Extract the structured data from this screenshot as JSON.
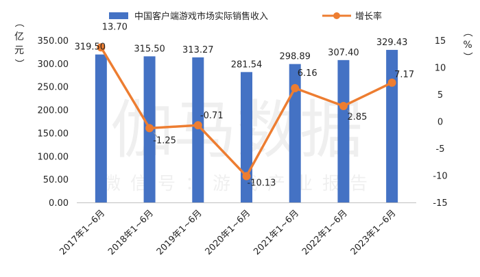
{
  "chart_data": {
    "type": "bar",
    "categories": [
      "2017年1~6月",
      "2018年1~6月",
      "2019年1~6月",
      "2020年1~6月",
      "2021年1~6月",
      "2022年1~6月",
      "2023年1~6月"
    ],
    "series": [
      {
        "name": "中国客户端游戏市场实际销售收入",
        "type": "bar",
        "axis": "left",
        "color": "#4472C4",
        "values": [
          319.5,
          315.5,
          313.27,
          281.54,
          298.89,
          307.4,
          329.43
        ],
        "labels": [
          "319.50",
          "315.50",
          "313.27",
          "281.54",
          "298.89",
          "307.40",
          "329.43"
        ]
      },
      {
        "name": "增长率",
        "type": "line",
        "axis": "right",
        "color": "#ED7D31",
        "values": [
          13.7,
          -1.25,
          -0.71,
          -10.13,
          6.16,
          2.85,
          7.17
        ],
        "labels": [
          "13.70",
          "-1.25",
          "-0.71",
          "-10.13",
          "6.16",
          "2.85",
          "7.17"
        ]
      }
    ],
    "y_left": {
      "label": "（亿元）",
      "range": [
        0,
        350
      ],
      "step": 50,
      "ticks": [
        "0.00",
        "50.00",
        "100.00",
        "150.00",
        "200.00",
        "250.00",
        "300.00",
        "350.00"
      ]
    },
    "y_right": {
      "label": "（%）",
      "range": [
        -15,
        15
      ],
      "step": 5,
      "ticks": [
        "-15",
        "-10",
        "-5",
        "0",
        "5",
        "10",
        "15"
      ]
    },
    "legend_position": "top",
    "grid": false
  },
  "watermark": {
    "main": "伽马数据",
    "sub": "微信号：游戏产业报告"
  }
}
